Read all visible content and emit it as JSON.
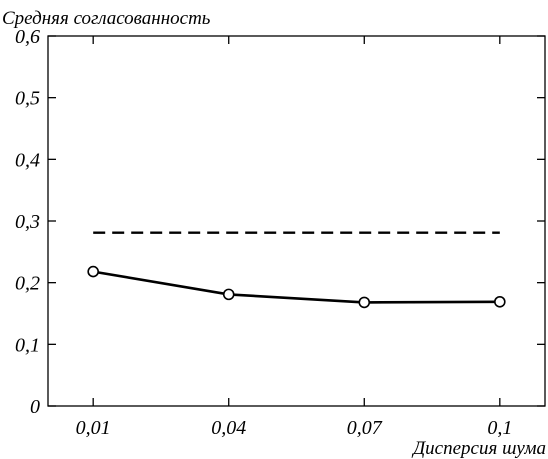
{
  "chart_data": {
    "type": "line",
    "ylabel": "Средняя согласованность",
    "xlabel": "Дисперсия шума",
    "x_ticks": [
      "0,01",
      "0,04",
      "0,07",
      "0,1"
    ],
    "y_ticks": [
      "0",
      "0,1",
      "0,2",
      "0,3",
      "0,4",
      "0,5",
      "0,6"
    ],
    "xlim": [
      0.0,
      0.11
    ],
    "ylim": [
      0,
      0.6
    ],
    "grid": false,
    "series": [
      {
        "style": "solid",
        "markers": "open-circle",
        "x": [
          0.01,
          0.04,
          0.07,
          0.1
        ],
        "y": [
          0.218,
          0.181,
          0.168,
          0.169
        ]
      },
      {
        "style": "dashed",
        "markers": "none",
        "x": [
          0.01,
          0.1
        ],
        "y": [
          0.281,
          0.281
        ]
      }
    ],
    "colors": {
      "line": "#000000",
      "marker_fill": "#ffffff",
      "background": "#ffffff"
    }
  }
}
